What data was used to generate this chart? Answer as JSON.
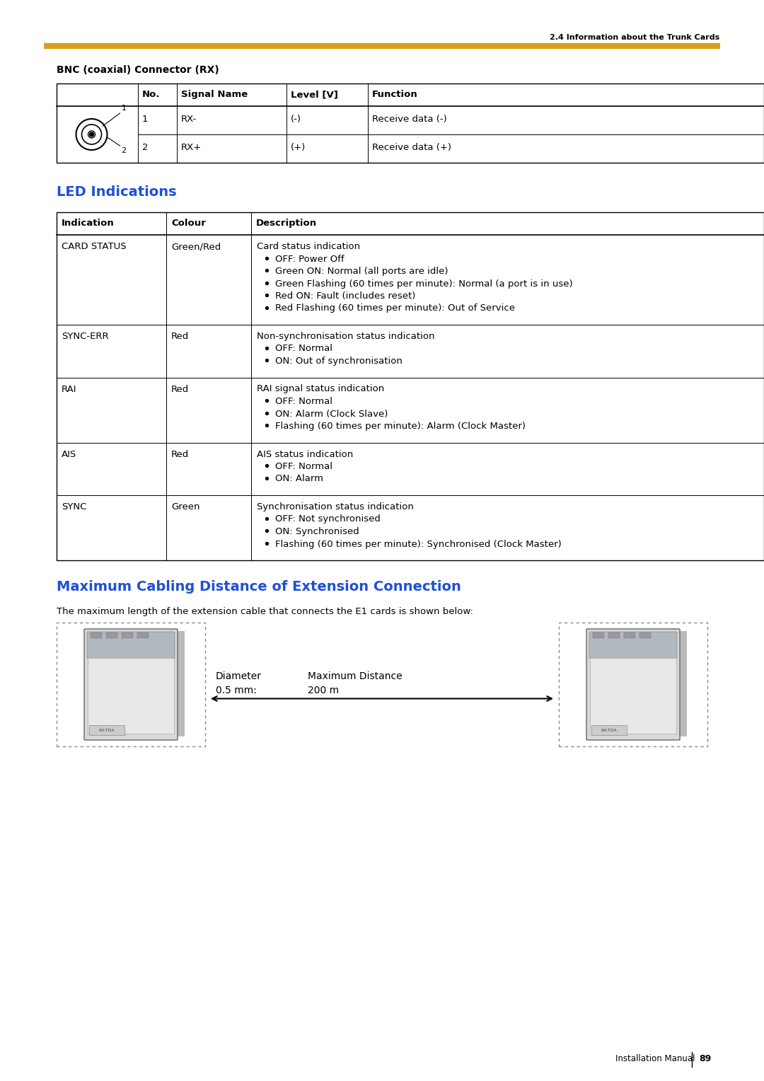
{
  "page_header": "2.4 Information about the Trunk Cards",
  "header_line_color": "#D4A017",
  "bnc_title": "BNC (coaxial) Connector (RX)",
  "bnc_table_headers": [
    "No.",
    "Signal Name",
    "Level [V]",
    "Function"
  ],
  "bnc_table_rows": [
    [
      "1",
      "RX-",
      "(-)",
      "Receive data (-)"
    ],
    [
      "2",
      "RX+",
      "(+)",
      "Receive data (+)"
    ]
  ],
  "led_title": "LED Indications",
  "led_title_color": "#1E4FD8",
  "led_table_headers": [
    "Indication",
    "Colour",
    "Description"
  ],
  "led_table_rows": [
    {
      "indication": "CARD STATUS",
      "colour": "Green/Red",
      "description": "Card status indication",
      "bullets": [
        "OFF: Power Off",
        "Green ON: Normal (all ports are idle)",
        "Green Flashing (60 times per minute): Normal (a port is in use)",
        "Red ON: Fault (includes reset)",
        "Red Flashing (60 times per minute): Out of Service"
      ]
    },
    {
      "indication": "SYNC-ERR",
      "colour": "Red",
      "description": "Non-synchronisation status indication",
      "bullets": [
        "OFF: Normal",
        "ON: Out of synchronisation"
      ]
    },
    {
      "indication": "RAI",
      "colour": "Red",
      "description": "RAI signal status indication",
      "bullets": [
        "OFF: Normal",
        "ON: Alarm (Clock Slave)",
        "Flashing (60 times per minute): Alarm (Clock Master)"
      ]
    },
    {
      "indication": "AIS",
      "colour": "Red",
      "description": "AIS status indication",
      "bullets": [
        "OFF: Normal",
        "ON: Alarm"
      ]
    },
    {
      "indication": "SYNC",
      "colour": "Green",
      "description": "Synchronisation status indication",
      "bullets": [
        "OFF: Not synchronised",
        "ON: Synchronised",
        "Flashing (60 times per minute): Synchronised (Clock Master)"
      ]
    }
  ],
  "max_cabling_title": "Maximum Cabling Distance of Extension Connection",
  "max_cabling_title_color": "#1E4FD8",
  "max_cabling_desc": "The maximum length of the extension cable that connects the E1 cards is shown below:",
  "diameter_label1": "Diameter",
  "diameter_label2": "0.5 mm:",
  "max_distance_label1": "Maximum Distance",
  "max_distance_label2": "200 m",
  "footer_text": "Installation Manual",
  "footer_page": "89",
  "bg_color": "#FFFFFF"
}
